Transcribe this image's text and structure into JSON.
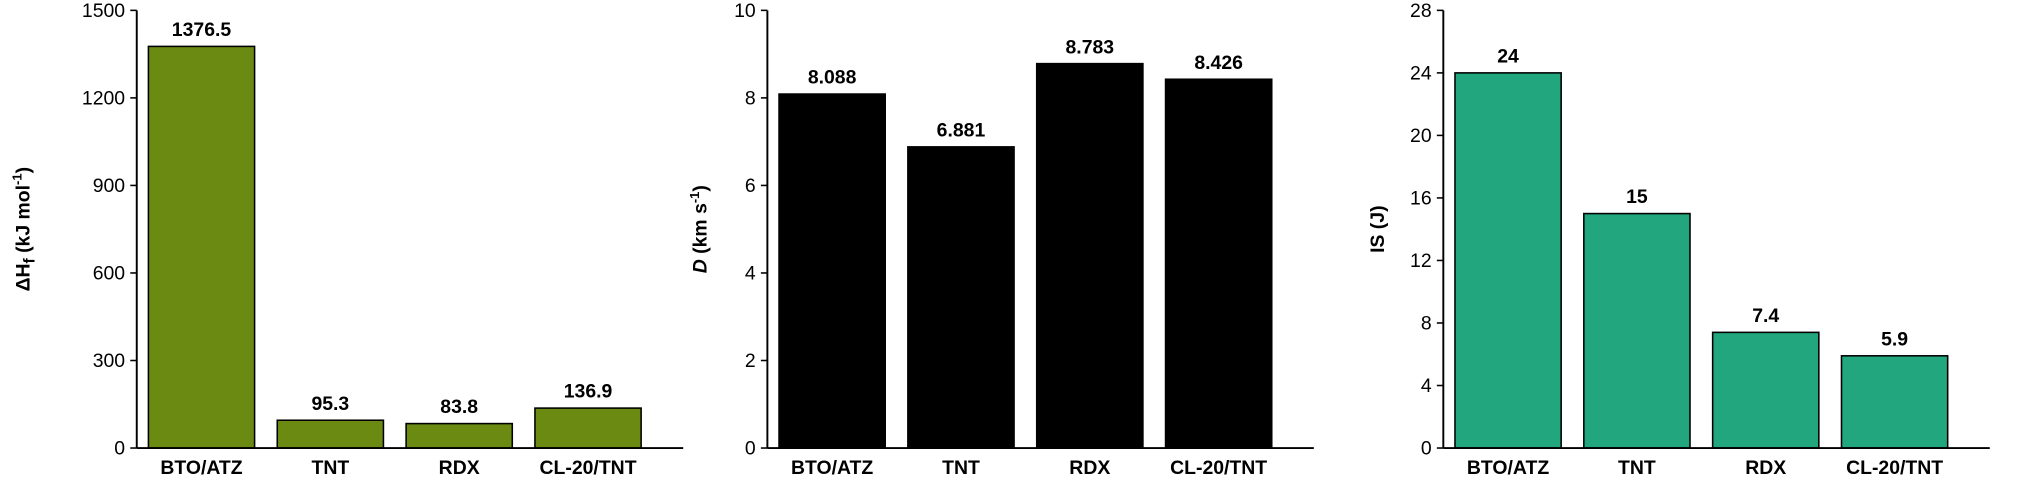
{
  "chart_data": [
    {
      "type": "bar",
      "ylabel": [
        {
          "text": "ΔH"
        },
        {
          "text": "f",
          "baseline": "sub"
        },
        {
          "text": " (kJ mol"
        },
        {
          "text": "-1",
          "baseline": "super"
        },
        {
          "text": ")"
        }
      ],
      "categories": [
        "BTO/ATZ",
        "TNT",
        "RDX",
        "CL-20/TNT"
      ],
      "values": [
        1376.5,
        95.3,
        83.8,
        136.9
      ],
      "color": "#6b8a12",
      "ylim": [
        0,
        1500
      ],
      "yticks": [
        0,
        300,
        600,
        900,
        1200,
        1500
      ]
    },
    {
      "type": "bar",
      "ylabel": [
        {
          "text": "D",
          "style": "italic"
        },
        {
          "text": " (km s"
        },
        {
          "text": "-1",
          "baseline": "super"
        },
        {
          "text": ")"
        }
      ],
      "categories": [
        "BTO/ATZ",
        "TNT",
        "RDX",
        "CL-20/TNT"
      ],
      "values": [
        8.088,
        6.881,
        8.783,
        8.426
      ],
      "color": "#000000",
      "ylim": [
        0,
        10
      ],
      "yticks": [
        0,
        2,
        4,
        6,
        8,
        10
      ]
    },
    {
      "type": "bar",
      "ylabel": [
        {
          "text": "IS (J)"
        }
      ],
      "categories": [
        "BTO/ATZ",
        "TNT",
        "RDX",
        "CL-20/TNT"
      ],
      "values": [
        24,
        15,
        7.4,
        5.9
      ],
      "color": "#22a67d",
      "ylim": [
        0,
        28
      ],
      "yticks": [
        0,
        4,
        8,
        12,
        16,
        20,
        24,
        28
      ]
    }
  ]
}
